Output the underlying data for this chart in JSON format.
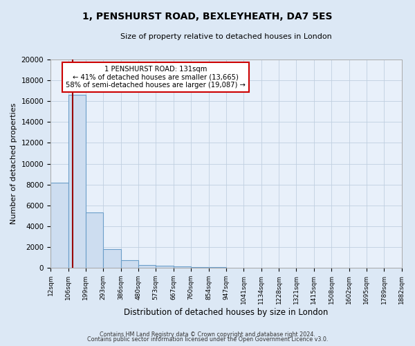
{
  "title": "1, PENSHURST ROAD, BEXLEYHEATH, DA7 5ES",
  "subtitle": "Size of property relative to detached houses in London",
  "xlabel": "Distribution of detached houses by size in London",
  "ylabel": "Number of detached properties",
  "bar_labels": [
    "12sqm",
    "106sqm",
    "199sqm",
    "293sqm",
    "386sqm",
    "480sqm",
    "573sqm",
    "667sqm",
    "760sqm",
    "854sqm",
    "947sqm",
    "1041sqm",
    "1134sqm",
    "1228sqm",
    "1321sqm",
    "1415sqm",
    "1508sqm",
    "1602sqm",
    "1695sqm",
    "1789sqm",
    "1882sqm"
  ],
  "bar_values": [
    8200,
    16600,
    5300,
    1800,
    750,
    300,
    200,
    130,
    100,
    80,
    0,
    0,
    0,
    0,
    0,
    0,
    0,
    0,
    0,
    0,
    0
  ],
  "bar_color": "#cdddf0",
  "bar_edge_color": "#6b9ec9",
  "plot_bg_color": "#e8f0fa",
  "ylim": [
    0,
    20000
  ],
  "yticks": [
    0,
    2000,
    4000,
    6000,
    8000,
    10000,
    12000,
    14000,
    16000,
    18000,
    20000
  ],
  "property_line_x": 131,
  "bin_edges": [
    12,
    106,
    199,
    293,
    386,
    480,
    573,
    667,
    760,
    854,
    947,
    1041,
    1134,
    1228,
    1321,
    1415,
    1508,
    1602,
    1695,
    1789,
    1882
  ],
  "red_line_color": "#990000",
  "annotation_title": "1 PENSHURST ROAD: 131sqm",
  "annotation_line1": "← 41% of detached houses are smaller (13,665)",
  "annotation_line2": "58% of semi-detached houses are larger (19,087) →",
  "annotation_box_facecolor": "#ffffff",
  "annotation_box_edgecolor": "#cc0000",
  "grid_color": "#c0cfe0",
  "fig_bg_color": "#dce8f5",
  "title_fontsize": 10,
  "subtitle_fontsize": 8,
  "footer1": "Contains HM Land Registry data © Crown copyright and database right 2024.",
  "footer2": "Contains public sector information licensed under the Open Government Licence v3.0."
}
